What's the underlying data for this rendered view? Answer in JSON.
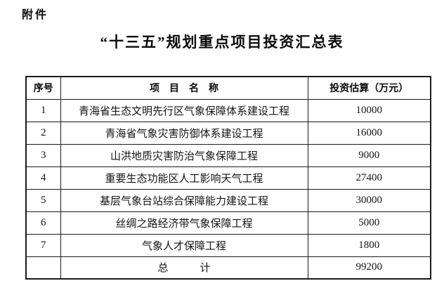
{
  "attachment_label": "附件",
  "title": "“十三五”规划重点项目投资汇总表",
  "table": {
    "headers": [
      "序号",
      "项　目　名　称",
      "投资估算（万元）"
    ],
    "rows": [
      {
        "no": "1",
        "name": "青海省生态文明先行区气象保障体系建设工程",
        "value": "10000"
      },
      {
        "no": "2",
        "name": "青海省气象灾害防御体系建设工程",
        "value": "16000"
      },
      {
        "no": "3",
        "name": "山洪地质灾害防治气象保障工程",
        "value": "9000"
      },
      {
        "no": "4",
        "name": "重要生态功能区人工影响天气工程",
        "value": "27400"
      },
      {
        "no": "5",
        "name": "基层气象台站综合保障能力建设工程",
        "value": "30000"
      },
      {
        "no": "6",
        "name": "丝绸之路经济带气象保障工程",
        "value": "5000"
      },
      {
        "no": "7",
        "name": "气象人才保障工程",
        "value": "1800"
      }
    ],
    "total": {
      "no": "",
      "label": "总　　　计",
      "value": "99200"
    }
  }
}
